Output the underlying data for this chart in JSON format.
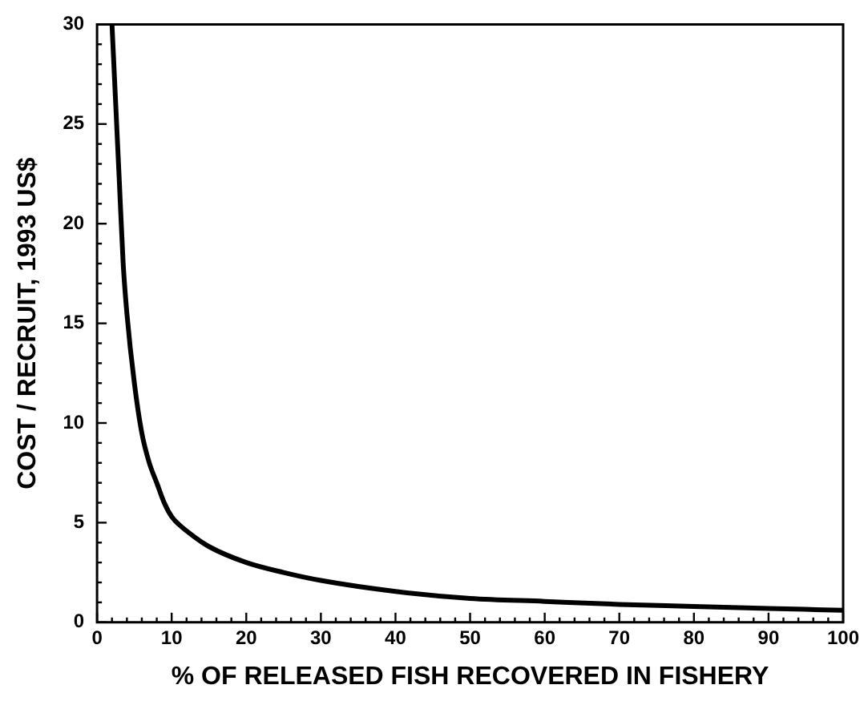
{
  "chart_data": {
    "type": "line",
    "xlabel": "% OF RELEASED FISH RECOVERED IN FISHERY",
    "ylabel": "COST / RECRUIT, 1993 US$",
    "x": [
      2,
      2.5,
      3,
      3.5,
      4,
      5,
      6,
      7,
      8,
      9,
      10,
      11,
      13,
      15,
      20,
      25,
      30,
      40,
      50,
      60,
      70,
      80,
      90,
      100
    ],
    "series": [
      {
        "color": "#000000",
        "values": [
          30,
          26,
          22,
          18,
          15.5,
          12,
          9.5,
          8,
          7,
          6,
          5.3,
          4.9,
          4.3,
          3.8,
          3.0,
          2.5,
          2.1,
          1.55,
          1.2,
          1.05,
          0.9,
          0.8,
          0.7,
          0.6
        ]
      }
    ],
    "xlim": [
      0,
      100
    ],
    "ylim": [
      0,
      30
    ],
    "xticks": [
      0,
      {
        "value": 2,
        "label": null
      },
      {
        "value": 4,
        "label": null
      },
      {
        "value": 6,
        "label": null
      },
      {
        "value": 8,
        "label": null
      },
      10,
      {
        "value": 12,
        "label": null
      },
      {
        "value": 14,
        "label": null
      },
      {
        "value": 16,
        "label": null
      },
      {
        "value": 18,
        "label": null
      },
      20,
      {
        "value": 22,
        "label": null
      },
      {
        "value": 24,
        "label": null
      },
      {
        "value": 26,
        "label": null
      },
      {
        "value": 28,
        "label": null
      },
      30,
      {
        "value": 32,
        "label": null
      },
      {
        "value": 34,
        "label": null
      },
      {
        "value": 36,
        "label": null
      },
      {
        "value": 38,
        "label": null
      },
      40,
      {
        "value": 42,
        "label": null
      },
      {
        "value": 44,
        "label": null
      },
      {
        "value": 46,
        "label": null
      },
      {
        "value": 48,
        "label": null
      },
      50,
      {
        "value": 52,
        "label": null
      },
      {
        "value": 54,
        "label": null
      },
      {
        "value": 56,
        "label": null
      },
      {
        "value": 58,
        "label": null
      },
      60,
      {
        "value": 62,
        "label": null
      },
      {
        "value": 64,
        "label": null
      },
      {
        "value": 66,
        "label": null
      },
      {
        "value": 68,
        "label": null
      },
      70,
      {
        "value": 72,
        "label": null
      },
      {
        "value": 74,
        "label": null
      },
      {
        "value": 76,
        "label": null
      },
      {
        "value": 78,
        "label": null
      },
      80,
      {
        "value": 82,
        "label": null
      },
      {
        "value": 84,
        "label": null
      },
      {
        "value": 86,
        "label": null
      },
      {
        "value": 88,
        "label": null
      },
      90,
      {
        "value": 92,
        "label": null
      },
      {
        "value": 94,
        "label": null
      },
      {
        "value": 96,
        "label": null
      },
      {
        "value": 98,
        "label": null
      },
      100
    ],
    "yticks": [
      0,
      {
        "value": 1,
        "label": null
      },
      {
        "value": 2,
        "label": null
      },
      {
        "value": 3,
        "label": null
      },
      {
        "value": 4,
        "label": null
      },
      5,
      {
        "value": 6,
        "label": null
      },
      {
        "value": 7,
        "label": null
      },
      {
        "value": 8,
        "label": null
      },
      {
        "value": 9,
        "label": null
      },
      10,
      {
        "value": 11,
        "label": null
      },
      {
        "value": 12,
        "label": null
      },
      {
        "value": 13,
        "label": null
      },
      {
        "value": 14,
        "label": null
      },
      15,
      {
        "value": 16,
        "label": null
      },
      {
        "value": 17,
        "label": null
      },
      {
        "value": 18,
        "label": null
      },
      {
        "value": 19,
        "label": null
      },
      20,
      {
        "value": 21,
        "label": null
      },
      {
        "value": 22,
        "label": null
      },
      {
        "value": 23,
        "label": null
      },
      {
        "value": 24,
        "label": null
      },
      25,
      {
        "value": 26,
        "label": null
      },
      {
        "value": 27,
        "label": null
      },
      {
        "value": 28,
        "label": null
      },
      {
        "value": 29,
        "label": null
      },
      30
    ],
    "grid": false,
    "legend": false,
    "marker": "none",
    "line_style": "solid"
  }
}
